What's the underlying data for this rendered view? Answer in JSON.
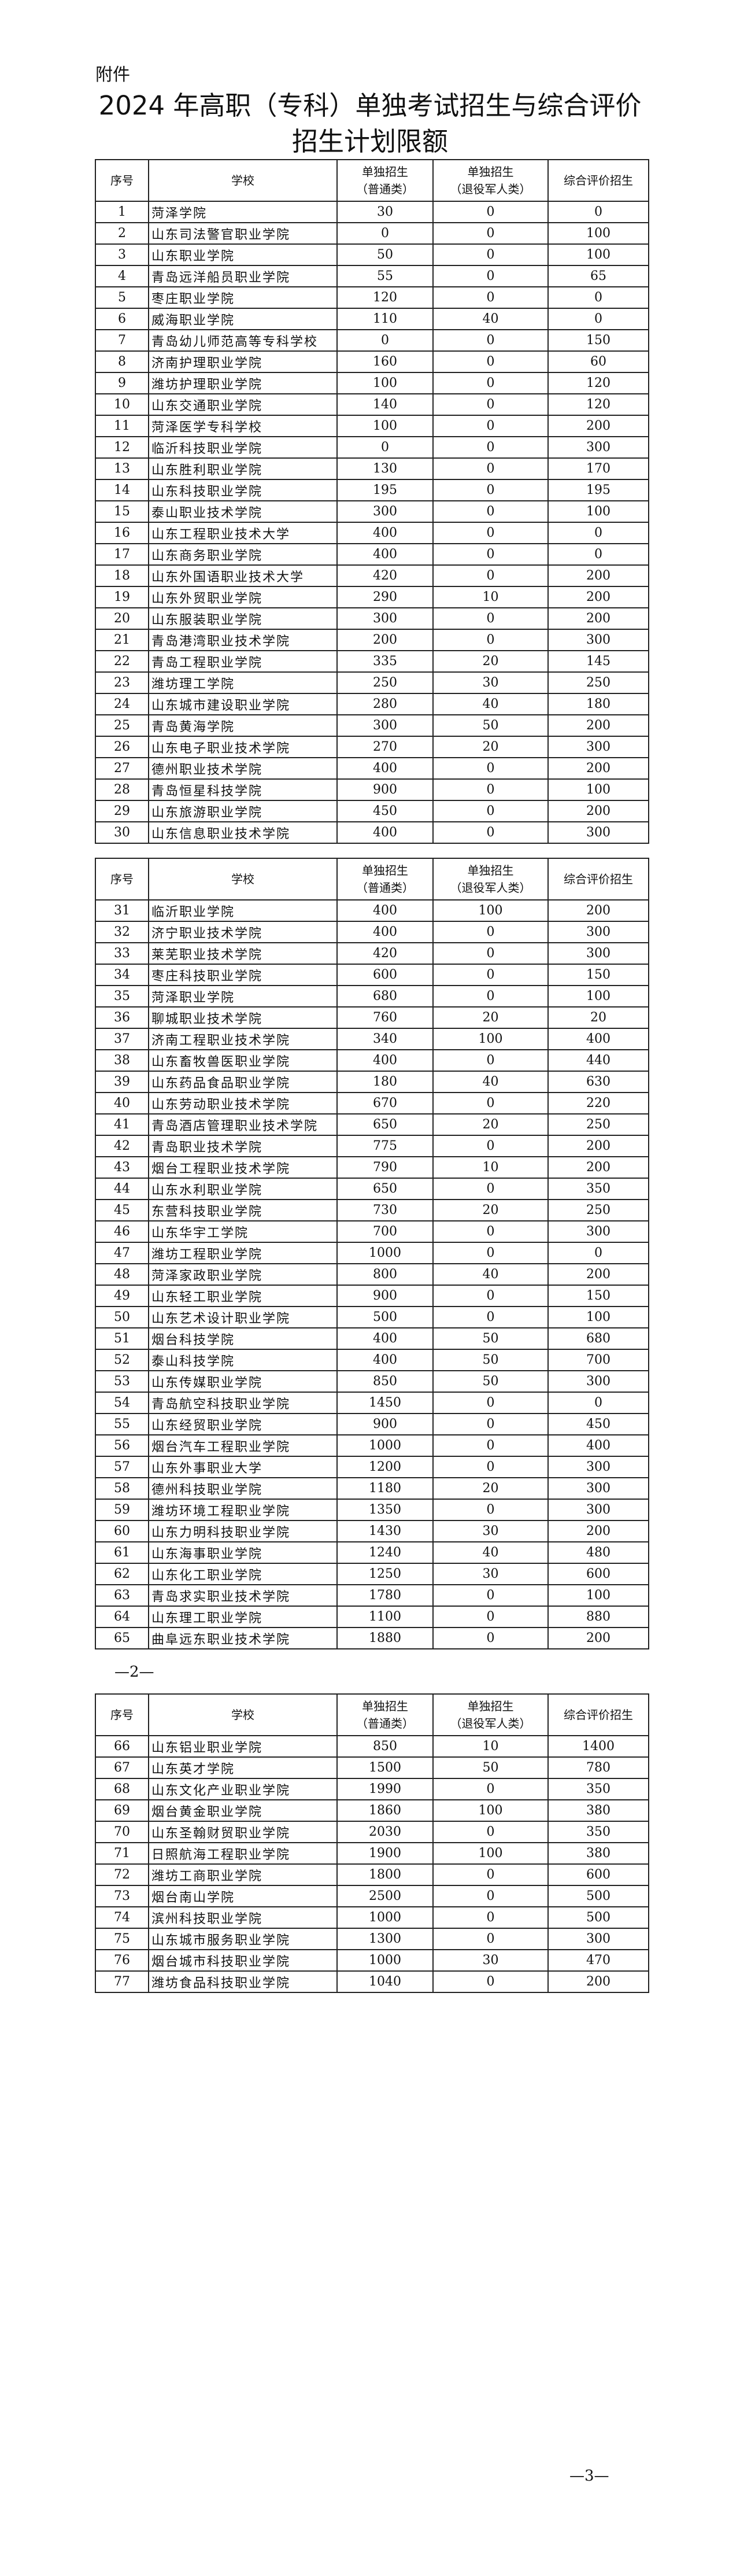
{
  "attachment_label": "附件",
  "title_line1": "2024 年高职（专科）单独考试招生与综合评价",
  "title_line2": "招生计划限额",
  "headers": {
    "seq": "序号",
    "school": "学校",
    "general_line1": "单独招生",
    "general_line2": "（普通类）",
    "veteran_line1": "单独招生",
    "veteran_line2": "（退役军人类）",
    "comprehensive": "综合评价招生"
  },
  "page_numbers": {
    "page2": "—2—",
    "page3": "—3—"
  },
  "tables": [
    {
      "rows": [
        [
          "1",
          "菏泽学院",
          "30",
          "0",
          "0"
        ],
        [
          "2",
          "山东司法警官职业学院",
          "0",
          "0",
          "100"
        ],
        [
          "3",
          "山东职业学院",
          "50",
          "0",
          "100"
        ],
        [
          "4",
          "青岛远洋船员职业学院",
          "55",
          "0",
          "65"
        ],
        [
          "5",
          "枣庄职业学院",
          "120",
          "0",
          "0"
        ],
        [
          "6",
          "威海职业学院",
          "110",
          "40",
          "0"
        ],
        [
          "7",
          "青岛幼儿师范高等专科学校",
          "0",
          "0",
          "150"
        ],
        [
          "8",
          "济南护理职业学院",
          "160",
          "0",
          "60"
        ],
        [
          "9",
          "潍坊护理职业学院",
          "100",
          "0",
          "120"
        ],
        [
          "10",
          "山东交通职业学院",
          "140",
          "0",
          "120"
        ],
        [
          "11",
          "菏泽医学专科学校",
          "100",
          "0",
          "200"
        ],
        [
          "12",
          "临沂科技职业学院",
          "0",
          "0",
          "300"
        ],
        [
          "13",
          "山东胜利职业学院",
          "130",
          "0",
          "170"
        ],
        [
          "14",
          "山东科技职业学院",
          "195",
          "0",
          "195"
        ],
        [
          "15",
          "泰山职业技术学院",
          "300",
          "0",
          "100"
        ],
        [
          "16",
          "山东工程职业技术大学",
          "400",
          "0",
          "0"
        ],
        [
          "17",
          "山东商务职业学院",
          "400",
          "0",
          "0"
        ],
        [
          "18",
          "山东外国语职业技术大学",
          "420",
          "0",
          "200"
        ],
        [
          "19",
          "山东外贸职业学院",
          "290",
          "10",
          "200"
        ],
        [
          "20",
          "山东服装职业学院",
          "300",
          "0",
          "200"
        ],
        [
          "21",
          "青岛港湾职业技术学院",
          "200",
          "0",
          "300"
        ],
        [
          "22",
          "青岛工程职业学院",
          "335",
          "20",
          "145"
        ],
        [
          "23",
          "潍坊理工学院",
          "250",
          "30",
          "250"
        ],
        [
          "24",
          "山东城市建设职业学院",
          "280",
          "40",
          "180"
        ],
        [
          "25",
          "青岛黄海学院",
          "300",
          "50",
          "200"
        ],
        [
          "26",
          "山东电子职业技术学院",
          "270",
          "20",
          "300"
        ],
        [
          "27",
          "德州职业技术学院",
          "400",
          "0",
          "200"
        ],
        [
          "28",
          "青岛恒星科技学院",
          "900",
          "0",
          "100"
        ],
        [
          "29",
          "山东旅游职业学院",
          "450",
          "0",
          "200"
        ],
        [
          "30",
          "山东信息职业技术学院",
          "400",
          "0",
          "300"
        ]
      ]
    },
    {
      "rows": [
        [
          "31",
          "临沂职业学院",
          "400",
          "100",
          "200"
        ],
        [
          "32",
          "济宁职业技术学院",
          "400",
          "0",
          "300"
        ],
        [
          "33",
          "莱芜职业技术学院",
          "420",
          "0",
          "300"
        ],
        [
          "34",
          "枣庄科技职业学院",
          "600",
          "0",
          "150"
        ],
        [
          "35",
          "菏泽职业学院",
          "680",
          "0",
          "100"
        ],
        [
          "36",
          "聊城职业技术学院",
          "760",
          "20",
          "20"
        ],
        [
          "37",
          "济南工程职业技术学院",
          "340",
          "100",
          "400"
        ],
        [
          "38",
          "山东畜牧兽医职业学院",
          "400",
          "0",
          "440"
        ],
        [
          "39",
          "山东药品食品职业学院",
          "180",
          "40",
          "630"
        ],
        [
          "40",
          "山东劳动职业技术学院",
          "670",
          "0",
          "220"
        ],
        [
          "41",
          "青岛酒店管理职业技术学院",
          "650",
          "20",
          "250"
        ],
        [
          "42",
          "青岛职业技术学院",
          "775",
          "0",
          "200"
        ],
        [
          "43",
          "烟台工程职业技术学院",
          "790",
          "10",
          "200"
        ],
        [
          "44",
          "山东水利职业学院",
          "650",
          "0",
          "350"
        ],
        [
          "45",
          "东营科技职业学院",
          "730",
          "20",
          "250"
        ],
        [
          "46",
          "山东华宇工学院",
          "700",
          "0",
          "300"
        ],
        [
          "47",
          "潍坊工程职业学院",
          "1000",
          "0",
          "0"
        ],
        [
          "48",
          "菏泽家政职业学院",
          "800",
          "40",
          "200"
        ],
        [
          "49",
          "山东轻工职业学院",
          "900",
          "0",
          "150"
        ],
        [
          "50",
          "山东艺术设计职业学院",
          "500",
          "0",
          "100"
        ],
        [
          "51",
          "烟台科技学院",
          "400",
          "50",
          "680"
        ],
        [
          "52",
          "泰山科技学院",
          "400",
          "50",
          "700"
        ],
        [
          "53",
          "山东传媒职业学院",
          "850",
          "50",
          "300"
        ],
        [
          "54",
          "青岛航空科技职业学院",
          "1450",
          "0",
          "0"
        ],
        [
          "55",
          "山东经贸职业学院",
          "900",
          "0",
          "450"
        ],
        [
          "56",
          "烟台汽车工程职业学院",
          "1000",
          "0",
          "400"
        ],
        [
          "57",
          "山东外事职业大学",
          "1200",
          "0",
          "300"
        ],
        [
          "58",
          "德州科技职业学院",
          "1180",
          "20",
          "300"
        ],
        [
          "59",
          "潍坊环境工程职业学院",
          "1350",
          "0",
          "300"
        ],
        [
          "60",
          "山东力明科技职业学院",
          "1430",
          "30",
          "200"
        ],
        [
          "61",
          "山东海事职业学院",
          "1240",
          "40",
          "480"
        ],
        [
          "62",
          "山东化工职业学院",
          "1250",
          "30",
          "600"
        ],
        [
          "63",
          "青岛求实职业技术学院",
          "1780",
          "0",
          "100"
        ],
        [
          "64",
          "山东理工职业学院",
          "1100",
          "0",
          "880"
        ],
        [
          "65",
          "曲阜远东职业技术学院",
          "1880",
          "0",
          "200"
        ]
      ]
    },
    {
      "rows": [
        [
          "66",
          "山东铝业职业学院",
          "850",
          "10",
          "1400"
        ],
        [
          "67",
          "山东英才学院",
          "1500",
          "50",
          "780"
        ],
        [
          "68",
          "山东文化产业职业学院",
          "1990",
          "0",
          "350"
        ],
        [
          "69",
          "烟台黄金职业学院",
          "1860",
          "100",
          "380"
        ],
        [
          "70",
          "山东圣翰财贸职业学院",
          "2030",
          "0",
          "350"
        ],
        [
          "71",
          "日照航海工程职业学院",
          "1900",
          "100",
          "380"
        ],
        [
          "72",
          "潍坊工商职业学院",
          "1800",
          "0",
          "600"
        ],
        [
          "73",
          "烟台南山学院",
          "2500",
          "0",
          "500"
        ],
        [
          "74",
          "滨州科技职业学院",
          "1000",
          "0",
          "500"
        ],
        [
          "75",
          "山东城市服务职业学院",
          "1300",
          "0",
          "300"
        ],
        [
          "76",
          "烟台城市科技职业学院",
          "1000",
          "30",
          "470"
        ],
        [
          "77",
          "潍坊食品科技职业学院",
          "1040",
          "0",
          "200"
        ]
      ]
    }
  ]
}
